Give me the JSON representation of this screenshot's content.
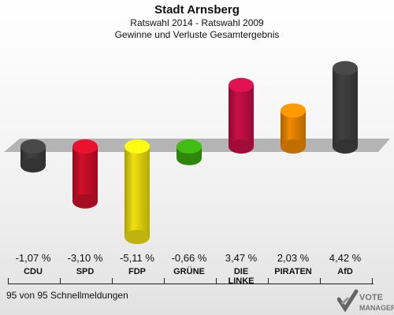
{
  "header": {
    "title": "Stadt Arnsberg",
    "subtitle": "Ratswahl 2014 - Ratswahl 2009",
    "subtitle2": "Gewinne und Verluste Gesamtergebnis"
  },
  "footer": {
    "reports": "95 von 95 Schnellmeldungen"
  },
  "logo": {
    "line1": "VOTE",
    "line2": "MANAGER"
  },
  "chart_data": {
    "type": "bar",
    "title": "Stadt Arnsberg",
    "categories": [
      "CDU",
      "SPD",
      "FDP",
      "GRÜNE",
      "DIE LINKE",
      "PIRATEN",
      "AfD"
    ],
    "category_lines": [
      [
        "CDU"
      ],
      [
        "SPD"
      ],
      [
        "FDP"
      ],
      [
        "GRÜNE"
      ],
      [
        "DIE",
        "LINKE"
      ],
      [
        "PIRATEN"
      ],
      [
        "AfD"
      ]
    ],
    "values": [
      -1.07,
      -3.1,
      -5.11,
      -0.66,
      3.47,
      2.03,
      4.42
    ],
    "value_labels": [
      "-1,07 %",
      "-3,10 %",
      "-5,11 %",
      "-0,66 %",
      "3,47 %",
      "2,03 %",
      "4,42 %"
    ],
    "colors": [
      "#404040",
      "#d0102a",
      "#f0e010",
      "#3aa810",
      "#c81048",
      "#f08a00",
      "#404040"
    ],
    "ylim": [
      -5.11,
      4.42
    ],
    "grid": false,
    "legend": "none"
  }
}
